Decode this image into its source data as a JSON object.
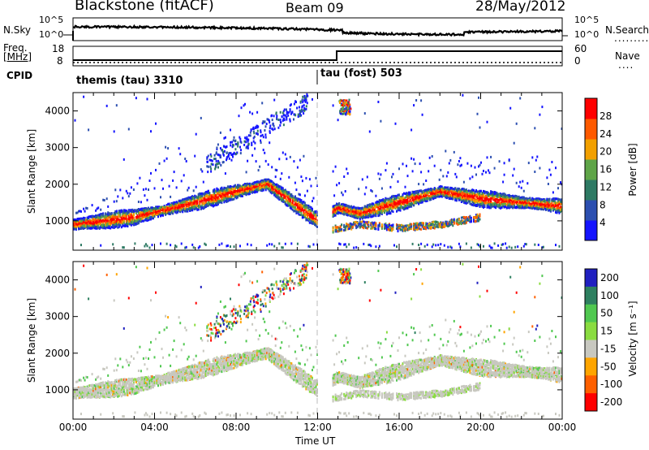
{
  "header": {
    "station": "Blackstone (fitACF)",
    "beam": "Beam 09",
    "date": "28/May/2012"
  },
  "noise_panel": {
    "left_label": "N.Sky",
    "left_ticks": [
      "10^5",
      "10^0"
    ],
    "right_label": "N.Search",
    "right_ticks": [
      "10^5",
      "10^0"
    ]
  },
  "freq_panel": {
    "left_label": "Freq.",
    "left_unit": "[MHz]",
    "left_ticks": [
      "18",
      "8"
    ],
    "right_label": "Nave",
    "right_ticks": [
      "60",
      "0"
    ]
  },
  "cpid": {
    "label": "CPID",
    "segments": [
      {
        "name": "themis (tau) 3310",
        "start_hour": 0
      },
      {
        "name": "tau (fost) 503",
        "start_hour": 12
      }
    ]
  },
  "chart_data": [
    {
      "type": "heatmap",
      "title": "",
      "xlabel": "Time UT",
      "ylabel": "Slant Range [km]",
      "x_ticks": [
        "00:00",
        "04:00",
        "08:00",
        "12:00",
        "16:00",
        "20:00",
        "00:00"
      ],
      "xlim_hours": [
        0,
        24
      ],
      "y_ticks": [
        1000,
        2000,
        3000,
        4000
      ],
      "ylim": [
        200,
        4500
      ],
      "colorbar": {
        "label": "Power [dB]",
        "ticks": [
          4,
          8,
          12,
          16,
          20,
          24,
          28
        ],
        "range": [
          0,
          32
        ],
        "colors": [
          "#1414ff",
          "#2c4fb0",
          "#2e7a64",
          "#5fa548",
          "#f2a000",
          "#ff5a00",
          "#ff0000"
        ]
      },
      "features": [
        {
          "desc": "main scatter band",
          "points_hour_km": [
            [
              0,
              900
            ],
            [
              3,
              1100
            ],
            [
              6,
              1500
            ],
            [
              8,
              1800
            ],
            [
              9.5,
              2000
            ],
            [
              11,
              1400
            ],
            [
              12,
              1000
            ],
            [
              13,
              1350
            ],
            [
              14,
              1200
            ],
            [
              16,
              1500
            ],
            [
              18,
              1800
            ],
            [
              20,
              1600
            ],
            [
              22,
              1500
            ],
            [
              24,
              1400
            ]
          ]
        },
        {
          "desc": "lower band",
          "points_hour_km": [
            [
              12,
              700
            ],
            [
              14,
              900
            ],
            [
              16,
              800
            ],
            [
              18,
              900
            ],
            [
              20,
              1100
            ]
          ]
        }
      ]
    },
    {
      "type": "heatmap",
      "title": "",
      "xlabel": "Time UT",
      "ylabel": "Slant Range [km]",
      "x_ticks": [
        "00:00",
        "04:00",
        "08:00",
        "12:00",
        "16:00",
        "20:00",
        "00:00"
      ],
      "xlim_hours": [
        0,
        24
      ],
      "y_ticks": [
        1000,
        2000,
        3000,
        4000
      ],
      "ylim": [
        200,
        4500
      ],
      "colorbar": {
        "label": "Velocity [m s⁻¹]",
        "ticks": [
          200,
          100,
          50,
          15,
          -15,
          -50,
          -100,
          -200
        ],
        "colors": [
          "#2020c0",
          "#2e8060",
          "#50c850",
          "#8adc40",
          "#c8c8c0",
          "#ffa500",
          "#ff6000",
          "#ff0000"
        ]
      }
    }
  ]
}
